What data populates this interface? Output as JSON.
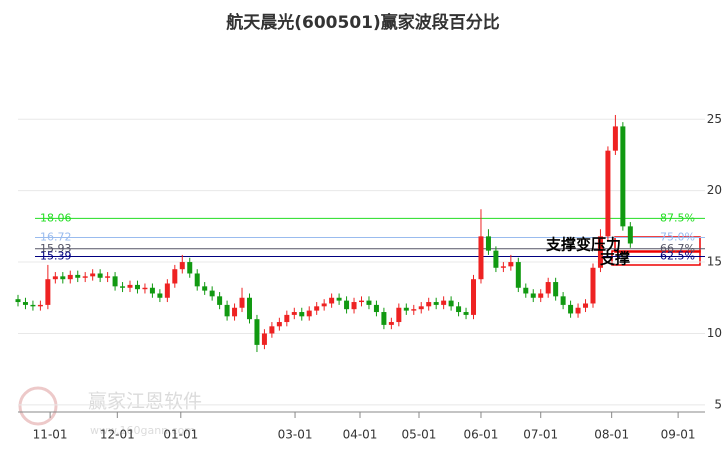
{
  "chart_data": {
    "type": "candlestick",
    "title": "航天晨光(600501)赢家波段百分比",
    "up_color": "#ee2222",
    "down_color": "#119911",
    "x": [
      0,
      1,
      2,
      3,
      4,
      5,
      6,
      7,
      8,
      9,
      10,
      11,
      12,
      13,
      14,
      15,
      16,
      17,
      18,
      19,
      20,
      21,
      22,
      23,
      24,
      25,
      26,
      27,
      28,
      29,
      30,
      31,
      32,
      33,
      34,
      35,
      36,
      37,
      38,
      39,
      40,
      41,
      42,
      43,
      44,
      45,
      46,
      47,
      48,
      49,
      50,
      51,
      52,
      53,
      54,
      55,
      56,
      57,
      58,
      59,
      60,
      61,
      62,
      63,
      64,
      65,
      66,
      67,
      68,
      69,
      70,
      71,
      72,
      73,
      74,
      75,
      76,
      77,
      78,
      79,
      80,
      81,
      82
    ],
    "candles": [
      [
        12.4,
        12.7,
        11.9,
        12.2
      ],
      [
        12.2,
        12.5,
        11.7,
        12.0
      ],
      [
        12.0,
        12.3,
        11.6,
        11.9
      ],
      [
        11.9,
        12.3,
        11.6,
        12.0
      ],
      [
        12.0,
        14.8,
        11.7,
        13.8
      ],
      [
        13.8,
        14.3,
        13.5,
        14.0
      ],
      [
        14.0,
        14.3,
        13.5,
        13.8
      ],
      [
        13.8,
        14.4,
        13.5,
        14.1
      ],
      [
        14.1,
        14.4,
        13.6,
        13.9
      ],
      [
        13.9,
        14.3,
        13.6,
        14.0
      ],
      [
        14.0,
        14.5,
        13.7,
        14.2
      ],
      [
        14.2,
        14.5,
        13.6,
        13.9
      ],
      [
        13.9,
        14.3,
        13.6,
        14.0
      ],
      [
        14.0,
        14.3,
        13.0,
        13.3
      ],
      [
        13.3,
        13.6,
        12.9,
        13.2
      ],
      [
        13.2,
        13.7,
        12.9,
        13.4
      ],
      [
        13.4,
        13.7,
        12.8,
        13.1
      ],
      [
        13.1,
        13.5,
        12.8,
        13.2
      ],
      [
        13.2,
        13.5,
        12.5,
        12.8
      ],
      [
        12.8,
        13.1,
        12.2,
        12.5
      ],
      [
        12.5,
        13.8,
        12.2,
        13.5
      ],
      [
        13.5,
        14.8,
        13.2,
        14.5
      ],
      [
        14.5,
        15.5,
        14.2,
        15.0
      ],
      [
        15.0,
        15.3,
        13.9,
        14.2
      ],
      [
        14.2,
        14.5,
        13.0,
        13.3
      ],
      [
        13.3,
        13.6,
        12.7,
        13.0
      ],
      [
        13.0,
        13.3,
        12.3,
        12.6
      ],
      [
        12.6,
        12.9,
        11.7,
        12.0
      ],
      [
        12.0,
        12.3,
        10.9,
        11.2
      ],
      [
        11.2,
        12.1,
        10.9,
        11.8
      ],
      [
        11.8,
        13.2,
        11.5,
        12.5
      ],
      [
        12.5,
        12.8,
        10.7,
        11.0
      ],
      [
        11.0,
        11.3,
        8.7,
        9.2
      ],
      [
        9.2,
        10.3,
        8.9,
        10.0
      ],
      [
        10.0,
        10.8,
        9.7,
        10.5
      ],
      [
        10.5,
        11.1,
        10.2,
        10.8
      ],
      [
        10.8,
        11.6,
        10.5,
        11.3
      ],
      [
        11.3,
        11.8,
        11.0,
        11.5
      ],
      [
        11.5,
        11.8,
        10.9,
        11.2
      ],
      [
        11.2,
        11.9,
        10.9,
        11.6
      ],
      [
        11.6,
        12.2,
        11.3,
        11.9
      ],
      [
        11.9,
        12.4,
        11.6,
        12.1
      ],
      [
        12.1,
        12.8,
        11.8,
        12.5
      ],
      [
        12.5,
        12.8,
        12.0,
        12.3
      ],
      [
        12.3,
        12.6,
        11.4,
        11.7
      ],
      [
        11.7,
        12.5,
        11.4,
        12.2
      ],
      [
        12.2,
        12.6,
        11.9,
        12.3
      ],
      [
        12.3,
        12.6,
        11.7,
        12.0
      ],
      [
        12.0,
        12.3,
        11.2,
        11.5
      ],
      [
        11.5,
        11.8,
        10.3,
        10.6
      ],
      [
        10.6,
        11.1,
        10.3,
        10.8
      ],
      [
        10.8,
        12.1,
        10.5,
        11.8
      ],
      [
        11.8,
        12.1,
        11.3,
        11.6
      ],
      [
        11.6,
        12.0,
        11.3,
        11.7
      ],
      [
        11.7,
        12.2,
        11.4,
        11.9
      ],
      [
        11.9,
        12.5,
        11.6,
        12.2
      ],
      [
        12.2,
        12.5,
        11.7,
        12.0
      ],
      [
        12.0,
        12.6,
        11.7,
        12.3
      ],
      [
        12.3,
        12.6,
        11.6,
        11.9
      ],
      [
        11.9,
        12.2,
        11.2,
        11.5
      ],
      [
        11.5,
        11.8,
        11.0,
        11.3
      ],
      [
        11.3,
        14.1,
        11.0,
        13.8
      ],
      [
        13.8,
        18.7,
        13.5,
        16.8
      ],
      [
        16.8,
        17.3,
        15.5,
        15.8
      ],
      [
        15.8,
        16.1,
        14.3,
        14.6
      ],
      [
        14.6,
        15.0,
        14.3,
        14.7
      ],
      [
        14.7,
        15.5,
        14.4,
        15.0
      ],
      [
        15.0,
        15.3,
        12.9,
        13.2
      ],
      [
        13.2,
        13.5,
        12.5,
        12.8
      ],
      [
        12.8,
        13.1,
        12.2,
        12.5
      ],
      [
        12.5,
        13.1,
        12.2,
        12.8
      ],
      [
        12.8,
        13.9,
        12.5,
        13.6
      ],
      [
        13.6,
        13.9,
        12.3,
        12.6
      ],
      [
        12.6,
        12.9,
        11.7,
        12.0
      ],
      [
        12.0,
        12.3,
        11.1,
        11.4
      ],
      [
        11.4,
        12.1,
        11.1,
        11.8
      ],
      [
        11.8,
        12.4,
        11.5,
        12.1
      ],
      [
        12.1,
        14.9,
        11.8,
        14.6
      ],
      [
        14.6,
        17.3,
        14.3,
        16.8
      ],
      [
        16.8,
        23.1,
        16.5,
        22.8
      ],
      [
        22.8,
        25.3,
        22.5,
        24.5
      ],
      [
        24.5,
        24.8,
        17.2,
        17.5
      ],
      [
        17.5,
        17.8,
        16.0,
        16.3
      ]
    ],
    "xlim": [
      0,
      92
    ],
    "xticks": [
      {
        "value": 4.3,
        "label": "11-01"
      },
      {
        "value": 13.3,
        "label": "12-01"
      },
      {
        "value": 21.8,
        "label": "01-01"
      },
      {
        "value": 37.1,
        "label": "03-01"
      },
      {
        "value": 45.8,
        "label": "04-01"
      },
      {
        "value": 53.7,
        "label": "05-01"
      },
      {
        "value": 62,
        "label": "06-01"
      },
      {
        "value": 70,
        "label": "07-01"
      },
      {
        "value": 79.5,
        "label": "08-01"
      },
      {
        "value": 88.4,
        "label": "09-01"
      }
    ],
    "ylim": [
      4.5,
      29.5
    ],
    "yticks": [
      5,
      10,
      15,
      20,
      25
    ],
    "grid": true,
    "levels": [
      {
        "value": 18.06,
        "pct": "87.5%",
        "color": "#22dd22"
      },
      {
        "value": 16.72,
        "pct": "75.0%",
        "color": "#99bbee"
      },
      {
        "value": 15.93,
        "pct": "66.7%",
        "color": "#555566"
      },
      {
        "value": 15.39,
        "pct": "62.5%",
        "color": "#000080"
      }
    ],
    "annotations": [
      "支撑变压力",
      "支撑"
    ],
    "watermark": {
      "text": "赢家江恩软件",
      "url": "www.160gann.com"
    }
  }
}
